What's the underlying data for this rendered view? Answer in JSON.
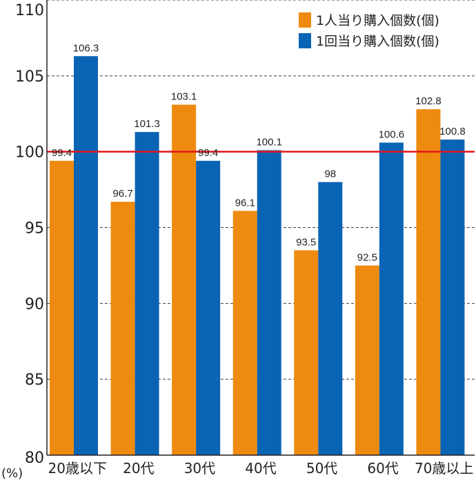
{
  "chart_data": {
    "type": "bar",
    "categories": [
      "20歳以下",
      "20代",
      "30代",
      "40代",
      "50代",
      "60代",
      "70歳以上"
    ],
    "series": [
      {
        "name": "1人当り購入個数(個)",
        "values": [
          99.4,
          96.7,
          103.1,
          96.1,
          93.5,
          92.5,
          102.8
        ],
        "labels": [
          "99.4",
          "96.7",
          "103.1",
          "96.1",
          "93.5",
          "92.5",
          "102.8"
        ],
        "color": "#ee8a0f"
      },
      {
        "name": "1回当り購入個数(個)",
        "values": [
          106.3,
          101.3,
          99.4,
          100.1,
          98,
          100.6,
          100.8
        ],
        "labels": [
          "106.3",
          "101.3",
          "99.4",
          "100.1",
          "98",
          "100.6",
          "100.8"
        ],
        "color": "#0a64b4"
      }
    ],
    "ylim": [
      80,
      110
    ],
    "yticks": [
      "80",
      "85",
      "90",
      "95",
      "100",
      "105",
      "110"
    ],
    "yunit": "(%)",
    "reference_line": {
      "value": 100,
      "color": "#e3131b"
    },
    "grid": "dashed horizontal",
    "legend_position": "top-right"
  }
}
